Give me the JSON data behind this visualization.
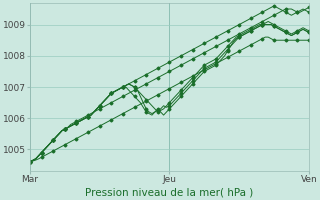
{
  "title": "Pression niveau de la mer( hPa )",
  "bg_color": "#cce8e0",
  "grid_color": "#99ccbf",
  "line_color": "#1a6e2a",
  "x_ticks_labels": [
    "Mar",
    "Jeu",
    "Ven"
  ],
  "x_ticks_pos": [
    0,
    48,
    96
  ],
  "ylim": [
    1004.3,
    1009.7
  ],
  "yticks": [
    1005,
    1006,
    1007,
    1008,
    1009
  ],
  "n_points": 97,
  "series": [
    {
      "y": [
        1004.6,
        1004.65,
        1004.7,
        1004.8,
        1004.9,
        1005.0,
        1005.1,
        1005.2,
        1005.3,
        1005.4,
        1005.5,
        1005.6,
        1005.65,
        1005.7,
        1005.8,
        1005.85,
        1005.9,
        1005.95,
        1006.0,
        1006.05,
        1006.1,
        1006.15,
        1006.2,
        1006.25,
        1006.3,
        1006.35,
        1006.4,
        1006.45,
        1006.5,
        1006.55,
        1006.6,
        1006.65,
        1006.7,
        1006.75,
        1006.8,
        1006.85,
        1006.9,
        1006.95,
        1007.0,
        1007.05,
        1007.1,
        1007.15,
        1007.2,
        1007.25,
        1007.3,
        1007.35,
        1007.4,
        1007.45,
        1007.5,
        1007.55,
        1007.6,
        1007.65,
        1007.7,
        1007.75,
        1007.8,
        1007.85,
        1007.9,
        1007.95,
        1008.0,
        1008.05,
        1008.1,
        1008.15,
        1008.2,
        1008.25,
        1008.3,
        1008.35,
        1008.4,
        1008.45,
        1008.5,
        1008.55,
        1008.6,
        1008.65,
        1008.7,
        1008.75,
        1008.8,
        1008.85,
        1008.9,
        1008.95,
        1009.0,
        1009.05,
        1009.1,
        1009.15,
        1009.2,
        1009.25,
        1009.3,
        1009.35,
        1009.4,
        1009.45,
        1009.5,
        1009.5,
        1009.5,
        1009.45,
        1009.4,
        1009.4,
        1009.45,
        1009.5,
        1009.55
      ]
    },
    {
      "y": [
        1004.6,
        1004.65,
        1004.7,
        1004.8,
        1004.9,
        1005.0,
        1005.1,
        1005.2,
        1005.3,
        1005.4,
        1005.5,
        1005.6,
        1005.65,
        1005.7,
        1005.75,
        1005.8,
        1005.85,
        1005.9,
        1005.95,
        1006.0,
        1006.05,
        1006.1,
        1006.2,
        1006.3,
        1006.4,
        1006.5,
        1006.6,
        1006.7,
        1006.8,
        1006.85,
        1006.9,
        1006.95,
        1007.0,
        1007.05,
        1007.1,
        1007.05,
        1007.0,
        1006.9,
        1006.8,
        1006.7,
        1006.6,
        1006.5,
        1006.4,
        1006.3,
        1006.2,
        1006.25,
        1006.3,
        1006.4,
        1006.5,
        1006.6,
        1006.7,
        1006.8,
        1006.9,
        1007.0,
        1007.1,
        1007.2,
        1007.3,
        1007.4,
        1007.5,
        1007.6,
        1007.7,
        1007.75,
        1007.8,
        1007.85,
        1007.9,
        1008.0,
        1008.1,
        1008.2,
        1008.3,
        1008.4,
        1008.5,
        1008.6,
        1008.65,
        1008.7,
        1008.75,
        1008.8,
        1008.85,
        1008.9,
        1008.95,
        1009.0,
        1009.0,
        1009.0,
        1009.0,
        1009.0,
        1008.95,
        1008.9,
        1008.85,
        1008.8,
        1008.75,
        1008.7,
        1008.65,
        1008.7,
        1008.75,
        1008.8,
        1008.85,
        1008.8,
        1008.75
      ]
    },
    {
      "y": [
        1004.6,
        1004.65,
        1004.7,
        1004.8,
        1004.9,
        1005.0,
        1005.1,
        1005.2,
        1005.3,
        1005.4,
        1005.5,
        1005.6,
        1005.65,
        1005.7,
        1005.75,
        1005.8,
        1005.85,
        1005.9,
        1005.95,
        1006.0,
        1006.05,
        1006.1,
        1006.2,
        1006.3,
        1006.4,
        1006.5,
        1006.6,
        1006.7,
        1006.8,
        1006.85,
        1006.9,
        1006.95,
        1007.0,
        1007.05,
        1007.1,
        1007.05,
        1007.0,
        1006.9,
        1006.7,
        1006.5,
        1006.3,
        1006.2,
        1006.15,
        1006.2,
        1006.25,
        1006.3,
        1006.4,
        1006.35,
        1006.4,
        1006.5,
        1006.6,
        1006.7,
        1006.8,
        1006.9,
        1007.0,
        1007.1,
        1007.2,
        1007.3,
        1007.4,
        1007.5,
        1007.6,
        1007.65,
        1007.7,
        1007.75,
        1007.8,
        1007.9,
        1008.0,
        1008.1,
        1008.2,
        1008.3,
        1008.4,
        1008.5,
        1008.6,
        1008.65,
        1008.7,
        1008.75,
        1008.8,
        1008.85,
        1008.9,
        1008.95,
        1009.0,
        1009.05,
        1009.1,
        1009.05,
        1009.0,
        1008.95,
        1008.9,
        1008.85,
        1008.8,
        1008.75,
        1008.7,
        1008.75,
        1008.8,
        1008.85,
        1008.9,
        1008.85,
        1008.8
      ]
    },
    {
      "y": [
        1004.6,
        1004.65,
        1004.7,
        1004.8,
        1004.9,
        1005.0,
        1005.1,
        1005.2,
        1005.3,
        1005.4,
        1005.5,
        1005.6,
        1005.65,
        1005.7,
        1005.75,
        1005.8,
        1005.85,
        1005.9,
        1005.95,
        1006.0,
        1006.05,
        1006.1,
        1006.2,
        1006.3,
        1006.4,
        1006.5,
        1006.6,
        1006.7,
        1006.8,
        1006.85,
        1006.9,
        1006.95,
        1007.0,
        1007.0,
        1006.9,
        1006.8,
        1006.7,
        1006.6,
        1006.5,
        1006.35,
        1006.2,
        1006.15,
        1006.1,
        1006.2,
        1006.3,
        1006.2,
        1006.1,
        1006.2,
        1006.3,
        1006.4,
        1006.5,
        1006.6,
        1006.7,
        1006.8,
        1006.9,
        1007.0,
        1007.1,
        1007.2,
        1007.3,
        1007.4,
        1007.5,
        1007.55,
        1007.6,
        1007.65,
        1007.7,
        1007.8,
        1007.9,
        1008.0,
        1008.15,
        1008.3,
        1008.45,
        1008.55,
        1008.6,
        1008.65,
        1008.7,
        1008.75,
        1008.8,
        1008.85,
        1008.9,
        1008.95,
        1009.0,
        1009.0,
        1009.0,
        1009.0,
        1008.95,
        1008.9,
        1008.85,
        1008.8,
        1008.75,
        1008.7,
        1008.65,
        1008.7,
        1008.75,
        1008.8,
        1008.85,
        1008.8,
        1008.75
      ]
    },
    {
      "y": [
        1004.6,
        1004.63,
        1004.66,
        1004.7,
        1004.75,
        1004.8,
        1004.85,
        1004.9,
        1004.95,
        1005.0,
        1005.05,
        1005.1,
        1005.15,
        1005.2,
        1005.25,
        1005.3,
        1005.35,
        1005.4,
        1005.45,
        1005.5,
        1005.55,
        1005.6,
        1005.65,
        1005.7,
        1005.75,
        1005.8,
        1005.85,
        1005.9,
        1005.95,
        1006.0,
        1006.05,
        1006.1,
        1006.15,
        1006.2,
        1006.25,
        1006.3,
        1006.35,
        1006.4,
        1006.45,
        1006.5,
        1006.55,
        1006.6,
        1006.65,
        1006.7,
        1006.75,
        1006.8,
        1006.85,
        1006.9,
        1006.95,
        1007.0,
        1007.05,
        1007.1,
        1007.15,
        1007.2,
        1007.25,
        1007.3,
        1007.35,
        1007.4,
        1007.45,
        1007.5,
        1007.55,
        1007.6,
        1007.65,
        1007.7,
        1007.75,
        1007.8,
        1007.85,
        1007.9,
        1007.95,
        1008.0,
        1008.05,
        1008.1,
        1008.15,
        1008.2,
        1008.25,
        1008.3,
        1008.35,
        1008.4,
        1008.45,
        1008.5,
        1008.55,
        1008.6,
        1008.6,
        1008.55,
        1008.5,
        1008.5,
        1008.5,
        1008.5,
        1008.5,
        1008.5,
        1008.5,
        1008.5,
        1008.5,
        1008.5,
        1008.5,
        1008.5,
        1008.5
      ]
    },
    {
      "y": [
        1004.6,
        1004.65,
        1004.7,
        1004.8,
        1004.9,
        1005.0,
        1005.1,
        1005.2,
        1005.3,
        1005.4,
        1005.5,
        1005.6,
        1005.65,
        1005.7,
        1005.75,
        1005.8,
        1005.85,
        1005.9,
        1005.95,
        1006.0,
        1006.05,
        1006.1,
        1006.2,
        1006.3,
        1006.4,
        1006.5,
        1006.6,
        1006.7,
        1006.8,
        1006.85,
        1006.9,
        1006.95,
        1007.0,
        1007.05,
        1007.1,
        1007.15,
        1007.2,
        1007.25,
        1007.3,
        1007.35,
        1007.4,
        1007.45,
        1007.5,
        1007.55,
        1007.6,
        1007.65,
        1007.7,
        1007.75,
        1007.8,
        1007.85,
        1007.9,
        1007.95,
        1008.0,
        1008.05,
        1008.1,
        1008.15,
        1008.2,
        1008.25,
        1008.3,
        1008.35,
        1008.4,
        1008.45,
        1008.5,
        1008.55,
        1008.6,
        1008.65,
        1008.7,
        1008.75,
        1008.8,
        1008.85,
        1008.9,
        1008.95,
        1009.0,
        1009.05,
        1009.1,
        1009.15,
        1009.2,
        1009.25,
        1009.3,
        1009.35,
        1009.4,
        1009.45,
        1009.5,
        1009.55,
        1009.6,
        1009.55,
        1009.5,
        1009.45,
        1009.4,
        1009.35,
        1009.3,
        1009.35,
        1009.4,
        1009.45,
        1009.5,
        1009.45,
        1009.4
      ]
    }
  ]
}
